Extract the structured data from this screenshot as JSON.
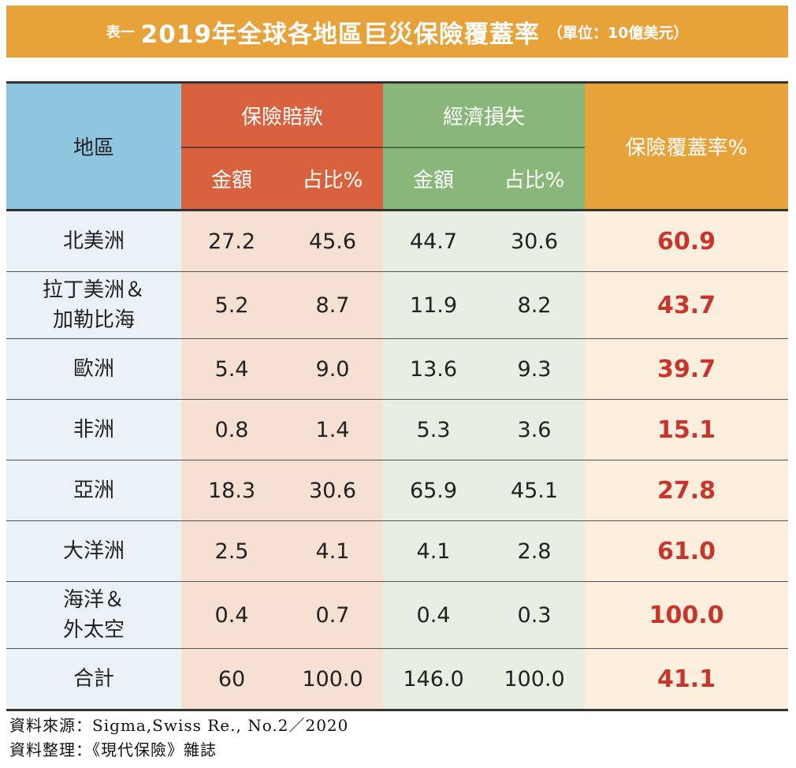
{
  "title": {
    "prefix": "表一",
    "main": "2019年全球各地區巨災保險覆蓋率",
    "unit": "（單位：10億美元）"
  },
  "colors": {
    "banner": "#e8a23a",
    "region_header": "#8fc6df",
    "claims_header": "#d9623e",
    "loss_header": "#88b779",
    "rate_header": "#e8a23a",
    "rate_value": "#c8352d"
  },
  "headers": {
    "region": "地區",
    "claims": "保險賠款",
    "loss": "經濟損失",
    "rate": "保險覆蓋率%",
    "amount": "金額",
    "share": "占比%"
  },
  "chart_data": {
    "type": "table",
    "title": "2019年全球各地區巨災保險覆蓋率",
    "columns": [
      "地區",
      "保險賠款 金額",
      "保險賠款 占比%",
      "經濟損失 金額",
      "經濟損失 占比%",
      "保險覆蓋率%"
    ],
    "rows": [
      {
        "region": [
          "北美洲"
        ],
        "claims_amount": "27.2",
        "claims_share": "45.6",
        "loss_amount": "44.7",
        "loss_share": "30.6",
        "rate": "60.9"
      },
      {
        "region": [
          "拉丁美洲＆",
          "加勒比海"
        ],
        "claims_amount": "5.2",
        "claims_share": "8.7",
        "loss_amount": "11.9",
        "loss_share": "8.2",
        "rate": "43.7"
      },
      {
        "region": [
          "歐洲"
        ],
        "claims_amount": "5.4",
        "claims_share": "9.0",
        "loss_amount": "13.6",
        "loss_share": "9.3",
        "rate": "39.7"
      },
      {
        "region": [
          "非洲"
        ],
        "claims_amount": "0.8",
        "claims_share": "1.4",
        "loss_amount": "5.3",
        "loss_share": "3.6",
        "rate": "15.1"
      },
      {
        "region": [
          "亞洲"
        ],
        "claims_amount": "18.3",
        "claims_share": "30.6",
        "loss_amount": "65.9",
        "loss_share": "45.1",
        "rate": "27.8"
      },
      {
        "region": [
          "大洋洲"
        ],
        "claims_amount": "2.5",
        "claims_share": "4.1",
        "loss_amount": "4.1",
        "loss_share": "2.8",
        "rate": "61.0"
      },
      {
        "region": [
          "海洋＆",
          "外太空"
        ],
        "claims_amount": "0.4",
        "claims_share": "0.7",
        "loss_amount": "0.4",
        "loss_share": "0.3",
        "rate": "100.0"
      },
      {
        "region": [
          "合計"
        ],
        "claims_amount": "60",
        "claims_share": "100.0",
        "loss_amount": "146.0",
        "loss_share": "100.0",
        "rate": "41.1"
      }
    ]
  },
  "footer": {
    "source": "資料來源：Sigma,Swiss Re., No.2／2020",
    "compiled": "資料整理：《現代保險》雜誌"
  }
}
